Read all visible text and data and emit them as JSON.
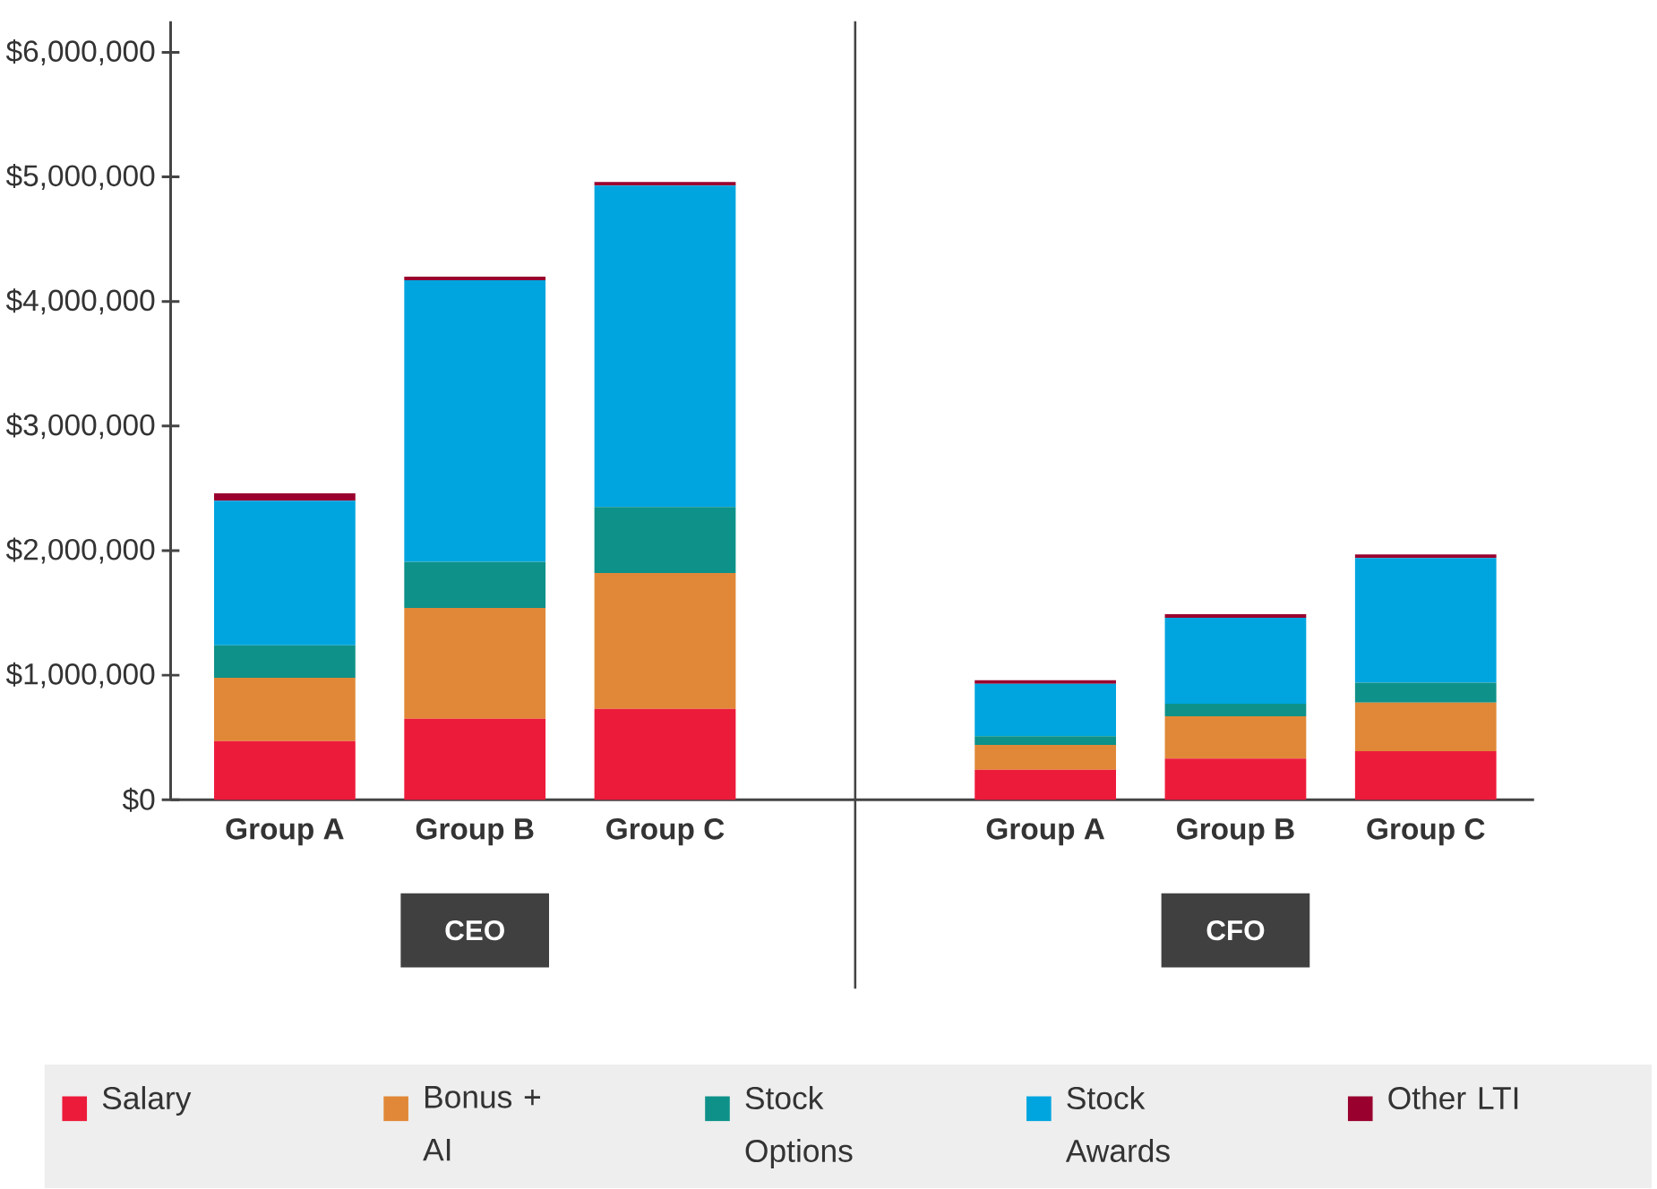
{
  "chart_data": {
    "type": "bar",
    "stacked": true,
    "categories": [
      "Group A",
      "Group B",
      "Group C",
      null,
      "Group A",
      "Group B",
      "Group C"
    ],
    "series": [
      {
        "name": "Salary",
        "color": "#ed1b3a",
        "values": [
          470000,
          650000,
          730000,
          null,
          240000,
          330000,
          390000
        ]
      },
      {
        "name": "Bonus + AI",
        "color": "#e08837",
        "values": [
          510000,
          890000,
          1090000,
          null,
          200000,
          340000,
          390000
        ]
      },
      {
        "name": "Stock Options",
        "color": "#0e9189",
        "values": [
          260000,
          370000,
          530000,
          null,
          70000,
          100000,
          160000
        ]
      },
      {
        "name": "Stock Awards",
        "color": "#00a5df",
        "values": [
          1160000,
          2260000,
          2580000,
          null,
          420000,
          690000,
          1000000
        ]
      },
      {
        "name": "Other LTI",
        "color": "#99002e",
        "values": [
          60000,
          30000,
          30000,
          null,
          30000,
          30000,
          30000
        ]
      }
    ],
    "ylim": [
      0,
      6250000
    ],
    "yticks": [
      {
        "value": 0,
        "label": "$0"
      },
      {
        "value": 1000000,
        "label": "$1,000,000"
      },
      {
        "value": 2000000,
        "label": "$2,000,000"
      },
      {
        "value": 3000000,
        "label": "$3,000,000"
      },
      {
        "value": 4000000,
        "label": "$4,000,000"
      },
      {
        "value": 5000000,
        "label": "$5,000,000"
      },
      {
        "value": 6000000,
        "label": "$6,000,000"
      }
    ],
    "legend": "bottom",
    "annotations": [
      "CEO",
      "CFO"
    ]
  }
}
